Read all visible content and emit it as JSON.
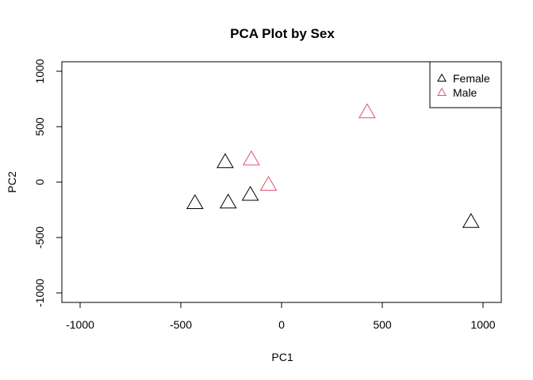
{
  "chart_data": {
    "type": "scatter",
    "title": "PCA Plot by Sex",
    "xlabel": "PC1",
    "ylabel": "PC2",
    "xlim": [
      -1000,
      1000
    ],
    "ylim": [
      -1000,
      1000
    ],
    "x_ticks": [
      -1000,
      -500,
      0,
      500,
      1000
    ],
    "y_ticks": [
      -1000,
      -500,
      0,
      500,
      1000
    ],
    "grid": false,
    "legend_position": "top-right",
    "series": [
      {
        "name": "Female",
        "color": "#000000",
        "marker": "triangle-open",
        "points": [
          {
            "x": -280,
            "y": 180
          },
          {
            "x": -430,
            "y": -190
          },
          {
            "x": -265,
            "y": -185
          },
          {
            "x": -155,
            "y": -115
          },
          {
            "x": 940,
            "y": -360
          }
        ]
      },
      {
        "name": "Male",
        "color": "#DF536B",
        "marker": "triangle-open",
        "points": [
          {
            "x": -150,
            "y": 205
          },
          {
            "x": -65,
            "y": -25
          },
          {
            "x": 425,
            "y": 630
          }
        ]
      }
    ]
  }
}
